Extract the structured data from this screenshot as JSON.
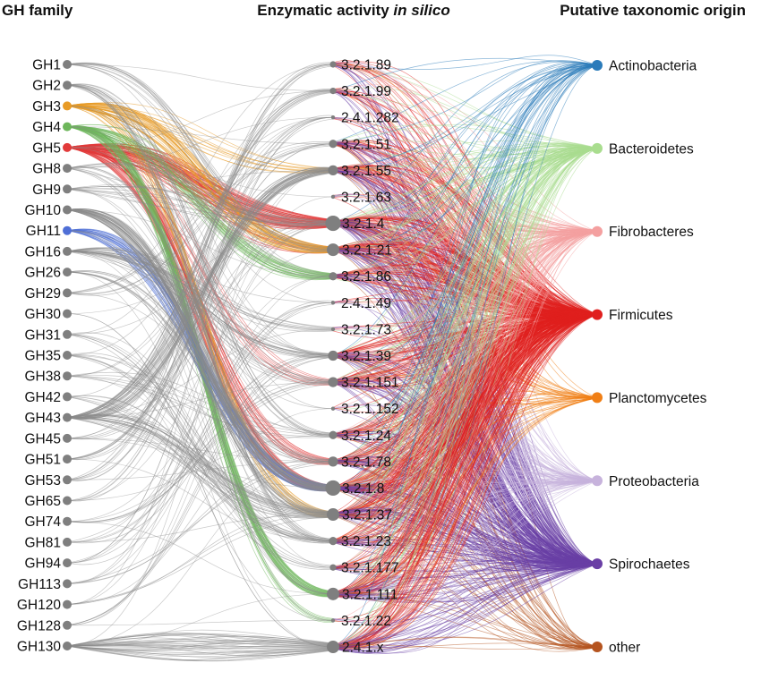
{
  "headers": {
    "left": "GH family",
    "middle_prefix": "Enzymatic activity ",
    "middle_italic": "in silico",
    "right": "Putative taxonomic origin"
  },
  "gh_families": [
    {
      "label": "GH1",
      "color": "#7f7f7f"
    },
    {
      "label": "GH2",
      "color": "#7f7f7f"
    },
    {
      "label": "GH3",
      "color": "#e89b26"
    },
    {
      "label": "GH4",
      "color": "#6db65b"
    },
    {
      "label": "GH5",
      "color": "#e23a3a"
    },
    {
      "label": "GH8",
      "color": "#7f7f7f"
    },
    {
      "label": "GH9",
      "color": "#7f7f7f"
    },
    {
      "label": "GH10",
      "color": "#7f7f7f"
    },
    {
      "label": "GH11",
      "color": "#4f6fd6"
    },
    {
      "label": "GH16",
      "color": "#7f7f7f"
    },
    {
      "label": "GH26",
      "color": "#7f7f7f"
    },
    {
      "label": "GH29",
      "color": "#7f7f7f"
    },
    {
      "label": "GH30",
      "color": "#7f7f7f"
    },
    {
      "label": "GH31",
      "color": "#7f7f7f"
    },
    {
      "label": "GH35",
      "color": "#7f7f7f"
    },
    {
      "label": "GH38",
      "color": "#7f7f7f"
    },
    {
      "label": "GH42",
      "color": "#7f7f7f"
    },
    {
      "label": "GH43",
      "color": "#7f7f7f"
    },
    {
      "label": "GH45",
      "color": "#7f7f7f"
    },
    {
      "label": "GH51",
      "color": "#7f7f7f"
    },
    {
      "label": "GH53",
      "color": "#7f7f7f"
    },
    {
      "label": "GH65",
      "color": "#7f7f7f"
    },
    {
      "label": "GH74",
      "color": "#7f7f7f"
    },
    {
      "label": "GH81",
      "color": "#7f7f7f"
    },
    {
      "label": "GH94",
      "color": "#7f7f7f"
    },
    {
      "label": "GH113",
      "color": "#7f7f7f"
    },
    {
      "label": "GH120",
      "color": "#7f7f7f"
    },
    {
      "label": "GH128",
      "color": "#7f7f7f"
    },
    {
      "label": "GH130",
      "color": "#7f7f7f"
    }
  ],
  "activities": [
    {
      "label": "3.2.1.89",
      "weight": 1
    },
    {
      "label": "3.2.1.99",
      "weight": 1
    },
    {
      "label": "2.4.1.282",
      "weight": 0
    },
    {
      "label": "3.2.1.51",
      "weight": 2
    },
    {
      "label": "3.2.1.55",
      "weight": 3
    },
    {
      "label": "3.2.1.63",
      "weight": 0
    },
    {
      "label": "3.2.1.4",
      "weight": 5
    },
    {
      "label": "3.2.1.21",
      "weight": 4
    },
    {
      "label": "3.2.1.86",
      "weight": 2
    },
    {
      "label": "2.4.1.49",
      "weight": 0
    },
    {
      "label": "3.2.1.73",
      "weight": 0
    },
    {
      "label": "3.2.1.39",
      "weight": 3
    },
    {
      "label": "3.2.1.151",
      "weight": 3
    },
    {
      "label": "3.2.1.152",
      "weight": 0
    },
    {
      "label": "3.2.1.24",
      "weight": 2
    },
    {
      "label": "3.2.1.78",
      "weight": 3
    },
    {
      "label": "3.2.1.8",
      "weight": 5
    },
    {
      "label": "3.2.1.37",
      "weight": 4
    },
    {
      "label": "3.2.1.23",
      "weight": 2
    },
    {
      "label": "3.2.1.177",
      "weight": 1
    },
    {
      "label": "3.2.1.111",
      "weight": 4
    },
    {
      "label": "3.2.1.22",
      "weight": 0
    },
    {
      "label": "2.4.1.x",
      "weight": 4
    }
  ],
  "taxa": [
    {
      "label": "Actinobacteria",
      "color": "#2b7bba"
    },
    {
      "label": "Bacteroidetes",
      "color": "#a9dd8f"
    },
    {
      "label": "Fibrobacteres",
      "color": "#f4a0a0"
    },
    {
      "label": "Firmicutes",
      "color": "#e0201f"
    },
    {
      "label": "Planctomycetes",
      "color": "#f07f16"
    },
    {
      "label": "Proteobacteria",
      "color": "#c7b3dc"
    },
    {
      "label": "Spirochaetes",
      "color": "#6a3fa5"
    },
    {
      "label": "other",
      "color": "#b5541f"
    }
  ],
  "colors": {
    "gray_node": "#7f7f7f",
    "gray_link": "#8c8c8c"
  }
}
